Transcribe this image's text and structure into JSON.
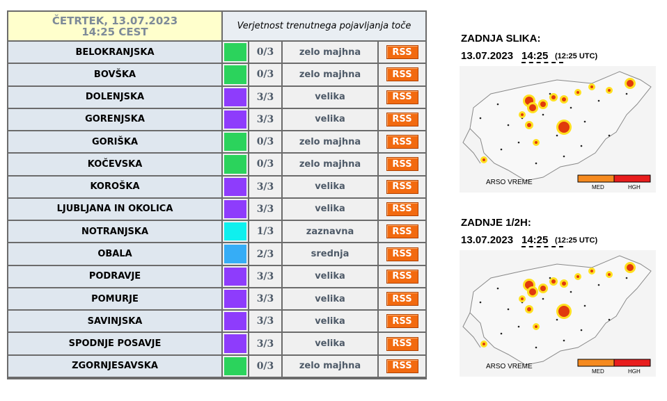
{
  "table": {
    "header": {
      "date": "ČETRTEK, 13.07.2023 14:25 CEST",
      "title": "Verjetnost trenutnega pojavljanja toče"
    },
    "rss_label": "RSS",
    "rows": [
      {
        "name": "BELOKRANJSKA",
        "color": "#2bd35c",
        "fraction": "0/3",
        "level": "zelo majhna"
      },
      {
        "name": "BOVŠKA",
        "color": "#2bd35c",
        "fraction": "0/3",
        "level": "zelo majhna"
      },
      {
        "name": "DOLENJSKA",
        "color": "#8e3cfc",
        "fraction": "3/3",
        "level": "velika"
      },
      {
        "name": "GORENJSKA",
        "color": "#8e3cfc",
        "fraction": "3/3",
        "level": "velika"
      },
      {
        "name": "GORIŠKA",
        "color": "#2bd35c",
        "fraction": "0/3",
        "level": "zelo majhna"
      },
      {
        "name": "KOČEVSKA",
        "color": "#2bd35c",
        "fraction": "0/3",
        "level": "zelo majhna"
      },
      {
        "name": "KOROŠKA",
        "color": "#8e3cfc",
        "fraction": "3/3",
        "level": "velika"
      },
      {
        "name": "LJUBLJANA IN OKOLICA",
        "color": "#8e3cfc",
        "fraction": "3/3",
        "level": "velika"
      },
      {
        "name": "NOTRANJSKA",
        "color": "#0ff0ee",
        "fraction": "1/3",
        "level": "zaznavna"
      },
      {
        "name": "OBALA",
        "color": "#36adf6",
        "fraction": "2/3",
        "level": "srednja"
      },
      {
        "name": "PODRAVJE",
        "color": "#8e3cfc",
        "fraction": "3/3",
        "level": "velika"
      },
      {
        "name": "POMURJE",
        "color": "#8e3cfc",
        "fraction": "3/3",
        "level": "velika"
      },
      {
        "name": "SAVINJSKA",
        "color": "#8e3cfc",
        "fraction": "3/3",
        "level": "velika"
      },
      {
        "name": "SPODNJE POSAVJE",
        "color": "#8e3cfc",
        "fraction": "3/3",
        "level": "velika"
      },
      {
        "name": "ZGORNJESAVSKA",
        "color": "#2bd35c",
        "fraction": "0/3",
        "level": "zelo majhna"
      }
    ]
  },
  "panels": [
    {
      "title": "ZADNJA SLIKA:",
      "date": "13.07.2023",
      "time": "14:25",
      "utc": "(12:25 UTC)",
      "brand": "ARSO VREME",
      "legend": [
        "MED",
        "HGH"
      ]
    },
    {
      "title": "ZADNJE 1/2H:",
      "date": "13.07.2023",
      "time": "14:25",
      "utc": "(12:25 UTC)",
      "brand": "ARSO VREME",
      "legend": [
        "MED",
        "HGH"
      ]
    }
  ]
}
